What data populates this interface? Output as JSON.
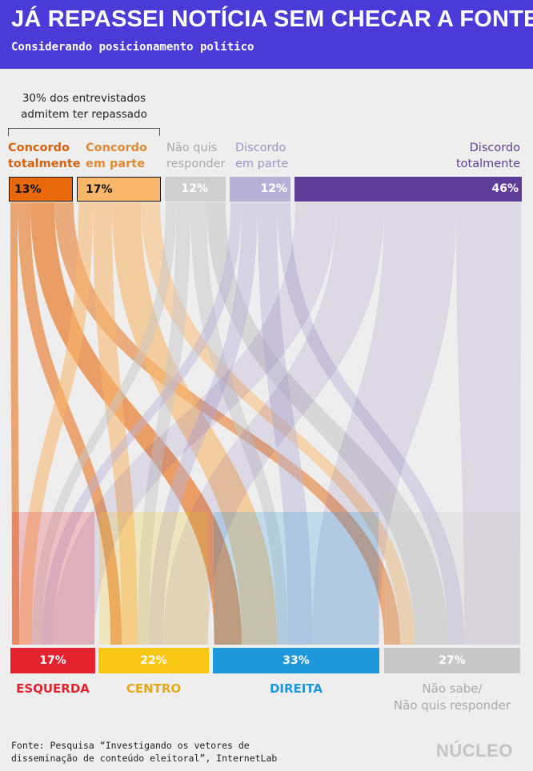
{
  "header": {
    "title": "JÁ REPASSEI NOTÍCIA SEM CHECAR A FONTE",
    "subtitle": "Considerando posicionamento político"
  },
  "annotation": {
    "line1": "30% dos entrevistados",
    "line2": "admitem ter repassado"
  },
  "colors": {
    "header_bg": "#4a3ad8",
    "concordo_totalmente": "#e8690c",
    "concordo_em_parte": "#f9b76b",
    "nao_quis_responder": "#c8c8c8",
    "discordo_em_parte": "#b7b1d6",
    "discordo_totalmente": "#5e3d99",
    "esquerda": "#e3232d",
    "centro": "#f8c815",
    "direita": "#1e98da",
    "nao_sabe": "#c8c8c8"
  },
  "chart_data": {
    "type": "sankey",
    "top_categories": [
      {
        "label_line1": "Concordo",
        "label_line2": "totalmente",
        "value": "13%"
      },
      {
        "label_line1": "Concordo",
        "label_line2": "em parte",
        "value": "17%"
      },
      {
        "label_line1": "Não quis",
        "label_line2": "responder",
        "value": "12%"
      },
      {
        "label_line1": "Discordo",
        "label_line2": "em parte",
        "value": "12%"
      },
      {
        "label_line1": "Discordo",
        "label_line2": "totalmente",
        "value": "46%"
      }
    ],
    "bottom_categories": [
      {
        "label_line1": "ESQUERDA",
        "label_line2": "",
        "value": "17%"
      },
      {
        "label_line1": "CENTRO",
        "label_line2": "",
        "value": "22%"
      },
      {
        "label_line1": "DIREITA",
        "label_line2": "",
        "value": "33%"
      },
      {
        "label_line1": "Não sabe/",
        "label_line2": "Não quis responder",
        "value": "27%"
      }
    ]
  },
  "footer": {
    "source_line1": "Fonte: Pesquisa “Investigando os vetores de",
    "source_line2": "disseminação de conteúdo eleitoral”, InternetLab",
    "logo": "NÚCLEO"
  }
}
